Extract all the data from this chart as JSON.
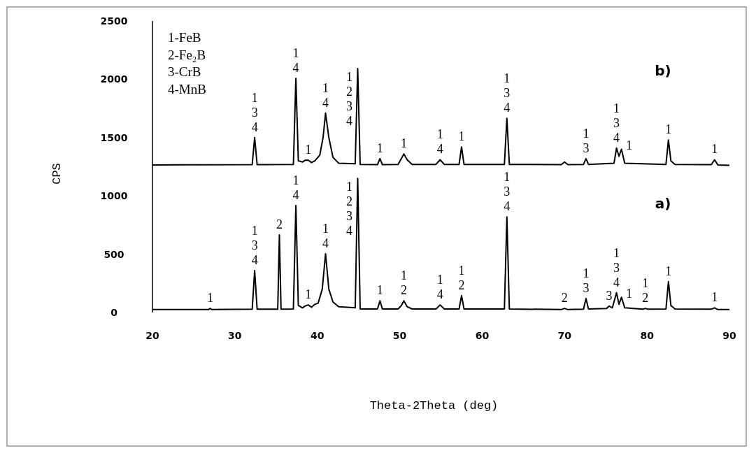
{
  "chart_data": {
    "type": "line",
    "xlabel": "Theta-2Theta (deg)",
    "ylabel": "CPS",
    "xlim": [
      20,
      90
    ],
    "xticks": [
      20,
      30,
      40,
      50,
      60,
      70,
      80,
      90
    ],
    "ylim": [
      0,
      2500
    ],
    "yticks": [
      0,
      500,
      1000,
      1500,
      2000,
      2500
    ],
    "grid": false,
    "marker": "none",
    "line_style": "solid",
    "series": [
      {
        "color": "#000000",
        "x": [
          20,
          26.8,
          27,
          27.2,
          32.1,
          32.4,
          32.7,
          35.2,
          35.4,
          35.6,
          37.1,
          37.4,
          37.7,
          38.2,
          38.5,
          38.9,
          39.3,
          39.7,
          40.1,
          40.6,
          41,
          41.4,
          41.9,
          42.6,
          44.6,
          44.9,
          45.2,
          47.3,
          47.6,
          47.9,
          49.8,
          50.2,
          50.5,
          50.9,
          51.5,
          54.4,
          54.9,
          55.4,
          57.2,
          57.5,
          57.8,
          62.7,
          63,
          63.3,
          69.6,
          70,
          70.4,
          72.3,
          72.6,
          72.9,
          75.1,
          75.4,
          75.8,
          76.3,
          76.6,
          76.9,
          77.3,
          79.5,
          79.8,
          80.1,
          82.3,
          82.6,
          82.9,
          83.4,
          87.8,
          88.2,
          88.6,
          90
        ],
        "values": [
          25,
          25,
          35,
          25,
          28,
          360,
          28,
          28,
          665,
          28,
          30,
          917,
          60,
          40,
          55,
          65,
          45,
          70,
          80,
          200,
          504,
          200,
          90,
          50,
          40,
          1150,
          30,
          30,
          100,
          30,
          30,
          60,
          100,
          50,
          30,
          30,
          65,
          30,
          30,
          145,
          30,
          30,
          820,
          30,
          25,
          35,
          25,
          28,
          120,
          30,
          35,
          55,
          40,
          170,
          70,
          130,
          40,
          28,
          35,
          28,
          30,
          265,
          60,
          30,
          28,
          40,
          25,
          25
        ]
      },
      {
        "color": "#000000",
        "x": [
          20,
          32.1,
          32.4,
          32.7,
          37.1,
          37.4,
          37.7,
          38.2,
          38.5,
          38.9,
          39.3,
          39.7,
          40.3,
          40.7,
          41,
          41.4,
          41.9,
          42.6,
          44.6,
          44.9,
          45.2,
          47.3,
          47.6,
          47.9,
          49.8,
          50.2,
          50.5,
          50.9,
          51.5,
          54.4,
          54.9,
          55.4,
          57.2,
          57.5,
          57.8,
          62.7,
          63,
          63.3,
          69.6,
          70,
          70.4,
          72.3,
          72.6,
          72.9,
          76,
          76.3,
          76.6,
          76.9,
          77.3,
          82.3,
          82.6,
          82.9,
          83.4,
          87.8,
          88.2,
          88.6,
          90
        ],
        "values": [
          1265,
          1268,
          1500,
          1268,
          1270,
          2008,
          1300,
          1290,
          1305,
          1307,
          1285,
          1300,
          1350,
          1500,
          1710,
          1500,
          1330,
          1280,
          1275,
          2093,
          1270,
          1268,
          1320,
          1268,
          1270,
          1320,
          1360,
          1310,
          1270,
          1270,
          1310,
          1270,
          1270,
          1420,
          1270,
          1270,
          1665,
          1270,
          1268,
          1290,
          1268,
          1270,
          1320,
          1270,
          1280,
          1410,
          1340,
          1400,
          1280,
          1270,
          1480,
          1300,
          1270,
          1268,
          1310,
          1265,
          1262
        ]
      }
    ],
    "annotations": [
      "1-FeB\n2-Fe₂B\n3-CrB\n4-MnB",
      "b)",
      "a)",
      {
        "text": "1\n3\n4",
        "x": 32.4,
        "y": 1500
      },
      {
        "text": "1\n4",
        "x": 37.4,
        "y": 2008
      },
      {
        "text": "1",
        "x": 38.9,
        "y": 1307
      },
      {
        "text": "1\n4",
        "x": 41,
        "y": 1710
      },
      {
        "text": "1\n2\n3\n4",
        "x": 44.9,
        "y": 2093
      },
      {
        "text": "1",
        "x": 47.6,
        "y": 1320
      },
      {
        "text": "1",
        "x": 50.5,
        "y": 1360
      },
      {
        "text": "1\n4",
        "x": 54.9,
        "y": 1310
      },
      {
        "text": "1",
        "x": 57.5,
        "y": 1420
      },
      {
        "text": "1\n3\n4",
        "x": 63,
        "y": 1665
      },
      {
        "text": "1\n3",
        "x": 72.6,
        "y": 1320
      },
      {
        "text": "1\n3\n4",
        "x": 76.3,
        "y": 1410
      },
      {
        "text": "1",
        "x": 76.9,
        "y": 1400
      },
      {
        "text": "1",
        "x": 82.6,
        "y": 1480
      },
      {
        "text": "1",
        "x": 88.2,
        "y": 1310
      },
      {
        "text": "1",
        "x": 27,
        "y": 35
      },
      {
        "text": "1\n3\n4",
        "x": 32.4,
        "y": 360
      },
      {
        "text": "2",
        "x": 35.4,
        "y": 665
      },
      {
        "text": "1\n4",
        "x": 37.4,
        "y": 917
      },
      {
        "text": "1",
        "x": 38.9,
        "y": 65
      },
      {
        "text": "1\n4",
        "x": 41,
        "y": 504
      },
      {
        "text": "1\n2\n3\n4",
        "x": 44.9,
        "y": 1150
      },
      {
        "text": "1",
        "x": 47.6,
        "y": 100
      },
      {
        "text": "1\n2",
        "x": 50.5,
        "y": 100
      },
      {
        "text": "1\n4",
        "x": 54.9,
        "y": 65
      },
      {
        "text": "1\n2",
        "x": 57.5,
        "y": 145
      },
      {
        "text": "1\n3\n4",
        "x": 63,
        "y": 820
      },
      {
        "text": "2",
        "x": 70,
        "y": 35
      },
      {
        "text": "1\n3",
        "x": 72.6,
        "y": 120
      },
      {
        "text": "3",
        "x": 75.4,
        "y": 55
      },
      {
        "text": "1\n3\n4",
        "x": 76.3,
        "y": 170
      },
      {
        "text": "1",
        "x": 76.9,
        "y": 130
      },
      {
        "text": "1\n2",
        "x": 79.8,
        "y": 35
      },
      {
        "text": "1",
        "x": 82.6,
        "y": 265
      },
      {
        "text": "1",
        "x": 88.2,
        "y": 40
      }
    ]
  }
}
